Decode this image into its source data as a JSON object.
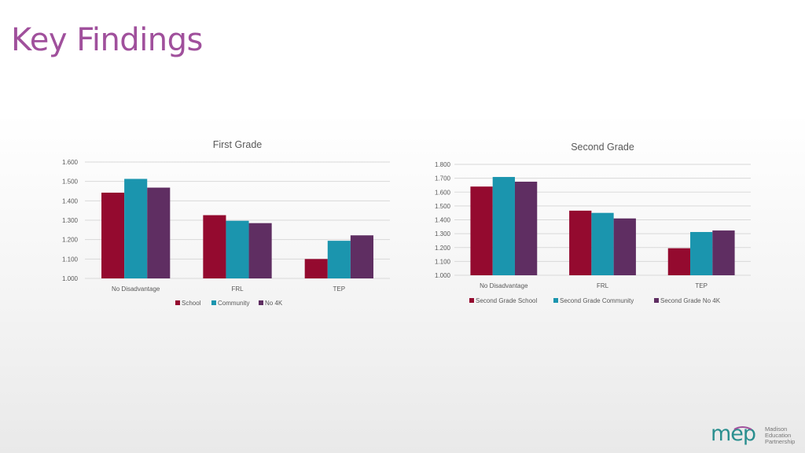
{
  "slide": {
    "title": "Key Findings"
  },
  "colors": {
    "school": "#940a2f",
    "community": "#1b95ae",
    "no4k": "#5f2e62"
  },
  "chart_data": [
    {
      "type": "bar",
      "title": "First Grade",
      "categories": [
        "No Disadvantage",
        "FRL",
        "TEP"
      ],
      "series": [
        {
          "name": "School",
          "values": [
            1.442,
            1.326,
            1.1
          ]
        },
        {
          "name": "Community",
          "values": [
            1.513,
            1.297,
            1.194
          ]
        },
        {
          "name": "No 4K",
          "values": [
            1.468,
            1.285,
            1.222
          ]
        }
      ],
      "ylim": [
        1.0,
        1.6
      ],
      "yticks": [
        "1.000",
        "1.100",
        "1.200",
        "1.300",
        "1.400",
        "1.500",
        "1.600"
      ],
      "grid": true,
      "legend": "bottom"
    },
    {
      "type": "bar",
      "title": "Second Grade",
      "categories": [
        "No Disadvantage",
        "FRL",
        "TEP"
      ],
      "series": [
        {
          "name": "Second Grade School",
          "values": [
            1.64,
            1.466,
            1.195
          ]
        },
        {
          "name": "Second Grade Community",
          "values": [
            1.709,
            1.45,
            1.312
          ]
        },
        {
          "name": "Second Grade No 4K",
          "values": [
            1.675,
            1.41,
            1.323
          ]
        }
      ],
      "ylim": [
        1.0,
        1.8
      ],
      "yticks": [
        "1.000",
        "1.100",
        "1.200",
        "1.300",
        "1.400",
        "1.500",
        "1.600",
        "1.700",
        "1.800"
      ],
      "grid": true,
      "legend": "bottom"
    }
  ],
  "logo": {
    "mark": "mep",
    "lines": [
      "Madison",
      "Education",
      "Partnership"
    ]
  }
}
